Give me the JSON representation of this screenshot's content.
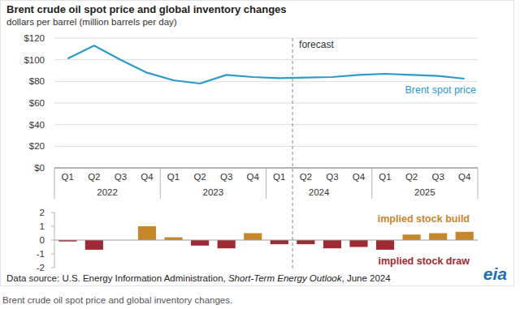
{
  "chart_data": [
    {
      "type": "line",
      "title": "Brent crude oil spot price and global inventory changes",
      "subtitle": "dollars per barrel (million barrels per day)",
      "categories": [
        "Q1",
        "Q2",
        "Q3",
        "Q4",
        "Q1",
        "Q2",
        "Q3",
        "Q4",
        "Q1",
        "Q2",
        "Q3",
        "Q4",
        "Q1",
        "Q2",
        "Q3",
        "Q4"
      ],
      "category_groups": [
        "2022",
        "2023",
        "2024",
        "2025"
      ],
      "series": [
        {
          "name": "Brent spot price",
          "color": "#2a9bcb",
          "values": [
            101,
            113,
            100,
            88,
            81,
            78,
            86,
            84,
            83,
            83.5,
            84,
            86,
            87,
            86,
            85,
            82.5
          ]
        }
      ],
      "ylim": [
        0,
        120
      ],
      "yticks": [
        {
          "value": 0,
          "label": "$0"
        },
        {
          "value": 20,
          "label": "$20"
        },
        {
          "value": 40,
          "label": "$40"
        },
        {
          "value": 60,
          "label": "$60"
        },
        {
          "value": 80,
          "label": "$80"
        },
        {
          "value": 100,
          "label": "$100"
        },
        {
          "value": 120,
          "label": "$120"
        }
      ],
      "grid": true,
      "annotations": [
        {
          "text": "forecast",
          "category_index": 9
        }
      ]
    },
    {
      "type": "bar",
      "categories": [
        "Q1",
        "Q2",
        "Q3",
        "Q4",
        "Q1",
        "Q2",
        "Q3",
        "Q4",
        "Q1",
        "Q2",
        "Q3",
        "Q4",
        "Q1",
        "Q2",
        "Q3",
        "Q4"
      ],
      "values": [
        -0.1,
        -0.7,
        0,
        1.0,
        0.2,
        -0.4,
        -0.6,
        0.5,
        -0.3,
        -0.3,
        -0.6,
        -0.5,
        -0.7,
        0.4,
        0.5,
        0.6
      ],
      "colors": [
        "#9e2a35",
        "#9e2a35",
        "#9e2a35",
        "#c8862a",
        "#c8862a",
        "#9e2a35",
        "#9e2a35",
        "#c8862a",
        "#9e2a35",
        "#9e2a35",
        "#9e2a35",
        "#9e2a35",
        "#9e2a35",
        "#c8862a",
        "#c8862a",
        "#c8862a"
      ],
      "ylim": [
        -2,
        2
      ],
      "yticks": [
        -2,
        -1,
        0,
        1,
        2
      ],
      "grid": false,
      "tick_labels": "y",
      "annotations": [
        {
          "text": "implied stock build",
          "color": "#c8862a"
        },
        {
          "text": "implied stock draw",
          "color": "#9e2a35"
        }
      ]
    }
  ],
  "source": [
    "Data source: U.S. Energy Information Administration, ",
    "Short-Term Energy Outlook",
    ", June 2024"
  ],
  "logo": "eia",
  "caption": "Brent crude oil spot price and global inventory changes."
}
